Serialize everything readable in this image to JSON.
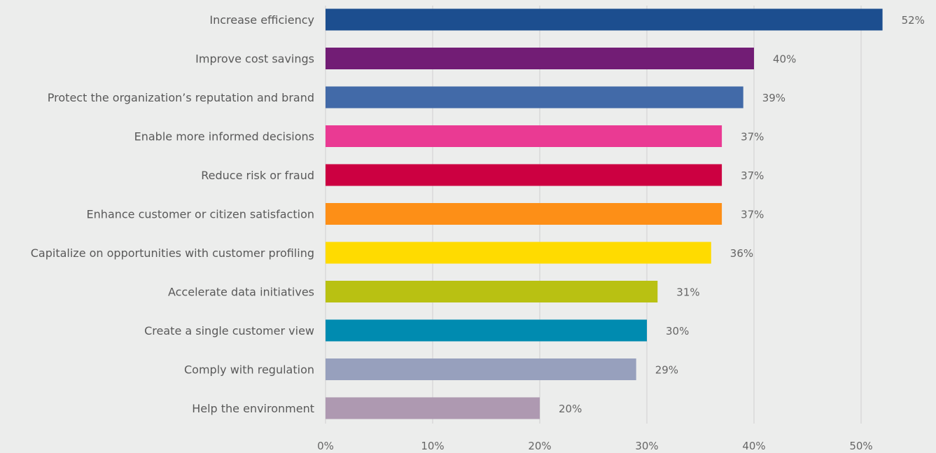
{
  "chart_data": {
    "type": "bar",
    "orientation": "horizontal",
    "title": "",
    "xlabel": "",
    "ylabel": "",
    "categories": [
      "Increase efficiency",
      "Improve cost savings",
      "Protect the organization’s reputation and brand",
      "Enable more informed decisions",
      "Reduce risk or fraud",
      "Enhance customer or citizen satisfaction",
      "Capitalize on opportunities with customer profiling",
      "Accelerate data initiatives",
      "Create a single customer view",
      "Comply with regulation",
      "Help the environment"
    ],
    "values": [
      52,
      40,
      39,
      37,
      37,
      37,
      36,
      31,
      30,
      29,
      20
    ],
    "value_labels": [
      "52%",
      "40%",
      "39%",
      "37%",
      "37%",
      "37%",
      "36%",
      "31%",
      "30%",
      "29%",
      "20%"
    ],
    "colors": [
      "#1c4e8f",
      "#721d75",
      "#426aa8",
      "#ea3a93",
      "#cc0041",
      "#fd8f17",
      "#ffdb00",
      "#b9c112",
      "#008bb0",
      "#97a0bd",
      "#ae99b1"
    ],
    "xlim": [
      0,
      52
    ],
    "x_ticks": [
      0,
      10,
      20,
      30,
      40,
      50
    ],
    "x_tick_labels": [
      "0%",
      "10%",
      "20%",
      "30%",
      "40%",
      "50%"
    ],
    "grid": "vertical",
    "legend": "none"
  }
}
